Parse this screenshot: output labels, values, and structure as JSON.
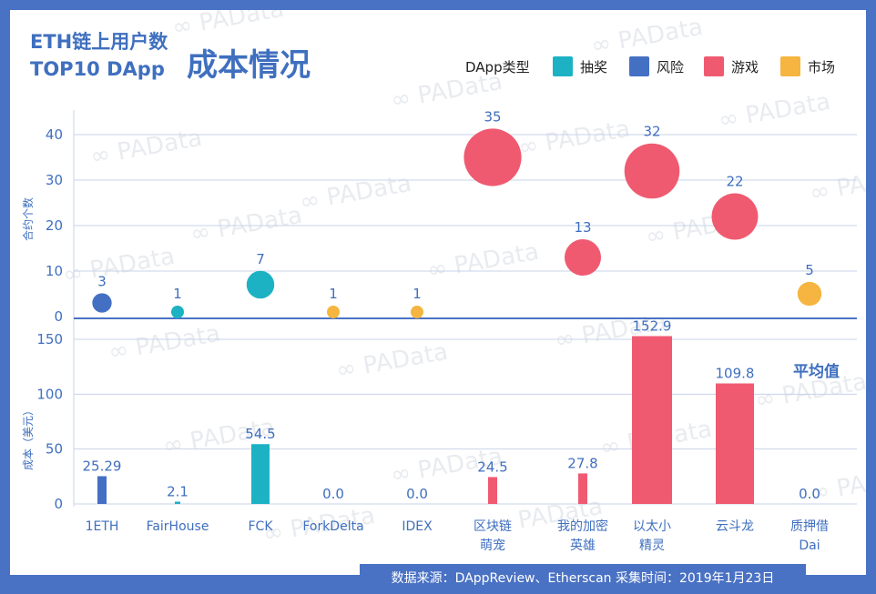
{
  "title": {
    "line1": "ETH链上用户数",
    "line2": "TOP10 DApp",
    "main": "成本情况"
  },
  "legend": {
    "title": "DApp类型",
    "items": [
      {
        "label": "抽奖",
        "color": "#1cb2c4"
      },
      {
        "label": "风险",
        "color": "#4470c4"
      },
      {
        "label": "游戏",
        "color": "#ef5a70"
      },
      {
        "label": "市场",
        "color": "#f5b540"
      }
    ]
  },
  "watermark": "PAData",
  "average_label": "平均值",
  "footer": "数据来源：DAppReview、Etherscan  采集时间：2019年1月23日",
  "chart_data": [
    {
      "type": "scatter",
      "ylabel": "合约个数",
      "ylim": [
        0,
        40
      ],
      "yticks": [
        0,
        10,
        20,
        30,
        40
      ],
      "categories": [
        "1ETH",
        "FairHouse",
        "FCK",
        "ForkDelta",
        "IDEX",
        "区块链萌宠",
        "我的加密英雄",
        "以太小精灵",
        "云斗龙",
        "质押借Dai"
      ],
      "values": [
        3,
        1,
        7,
        1,
        1,
        35,
        13,
        32,
        22,
        5
      ],
      "value_labels": [
        "3",
        "1",
        "7",
        "1",
        "1",
        "35",
        "13",
        "32",
        "22",
        "5"
      ],
      "types": [
        "风险",
        "抽奖",
        "抽奖",
        "市场",
        "市场",
        "游戏",
        "游戏",
        "游戏",
        "游戏",
        "市场"
      ],
      "grid": true
    },
    {
      "type": "bar",
      "ylabel": "成本（美元）",
      "ylim": [
        0,
        150
      ],
      "yticks": [
        0,
        50,
        100,
        150
      ],
      "categories": [
        "1ETH",
        "FairHouse",
        "FCK",
        "ForkDelta",
        "IDEX",
        "区块链萌宠",
        "我的加密英雄",
        "以太小精灵",
        "云斗龙",
        "质押借Dai"
      ],
      "category_lines": [
        [
          "1ETH"
        ],
        [
          "FairHouse"
        ],
        [
          "FCK"
        ],
        [
          "ForkDelta"
        ],
        [
          "IDEX"
        ],
        [
          "区块链",
          "萌宠"
        ],
        [
          "我的加密",
          "英雄"
        ],
        [
          "以太小",
          "精灵"
        ],
        [
          "云斗龙"
        ],
        [
          "质押借",
          "Dai"
        ]
      ],
      "values": [
        25.29,
        2.1,
        54.5,
        0.0,
        0.0,
        24.5,
        27.8,
        152.9,
        109.8,
        0.0
      ],
      "value_labels": [
        "25.29",
        "2.1",
        "54.5",
        "0.0",
        "0.0",
        "24.5",
        "27.8",
        "152.9",
        "109.8",
        "0.0"
      ],
      "types": [
        "风险",
        "抽奖",
        "抽奖",
        "市场",
        "市场",
        "游戏",
        "游戏",
        "游戏",
        "游戏",
        "市场"
      ],
      "grid": true
    }
  ]
}
